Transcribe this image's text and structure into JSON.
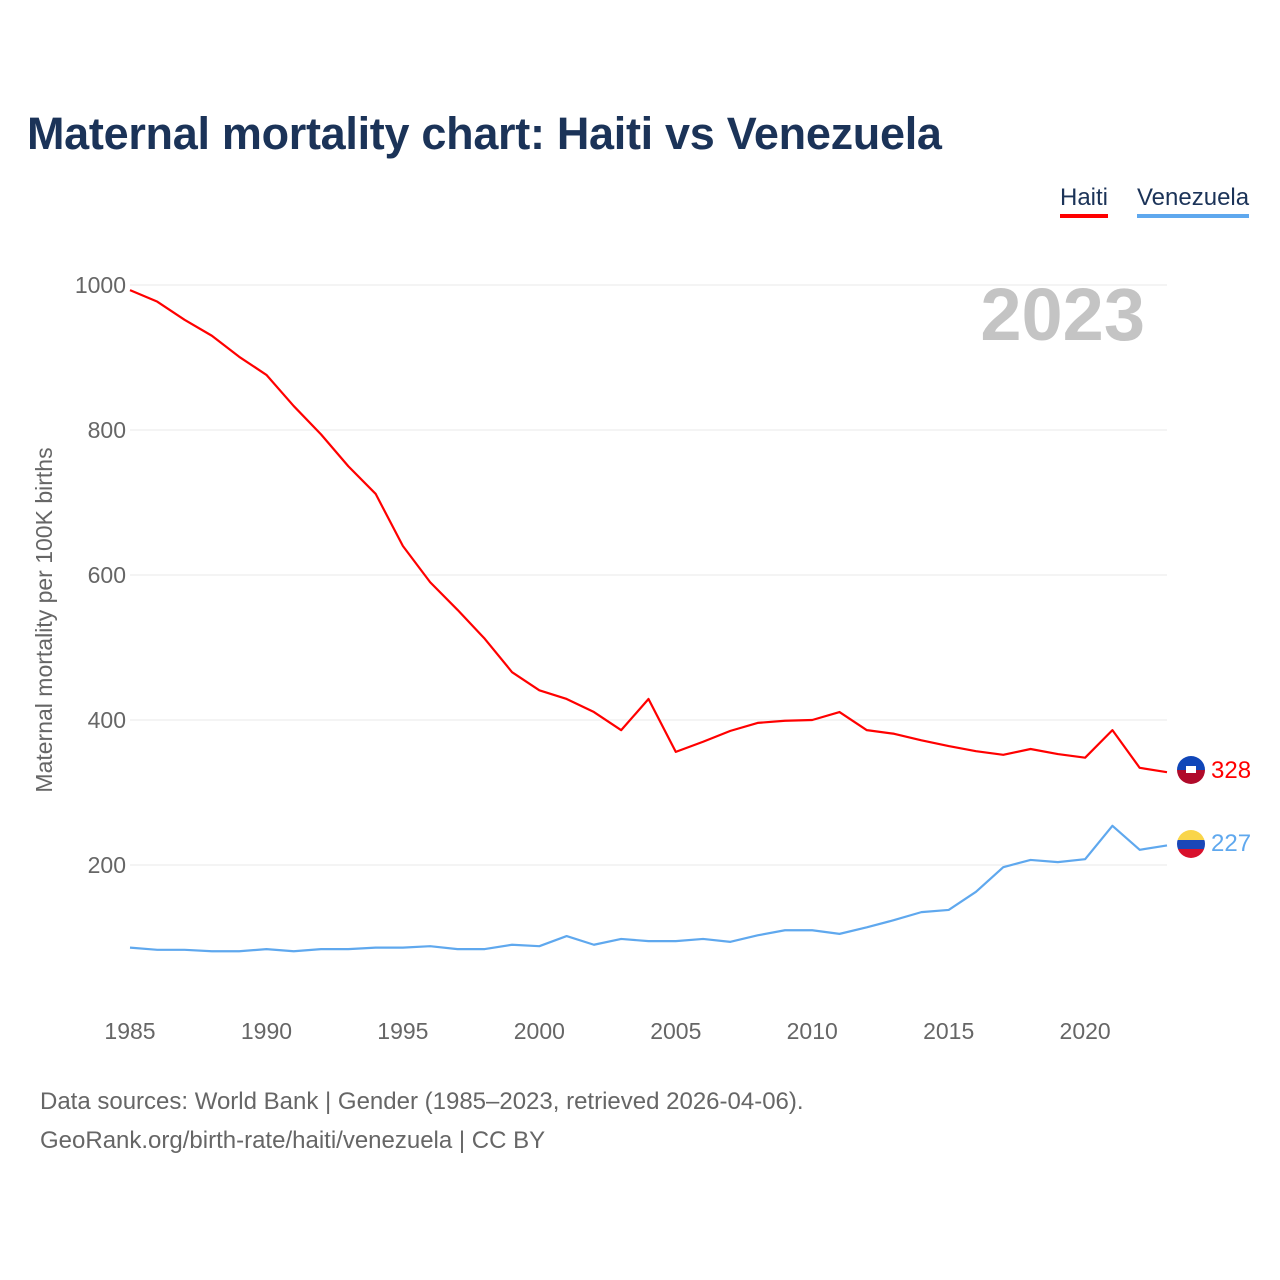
{
  "chart_data": {
    "type": "line",
    "title": "Maternal mortality chart: Haiti vs Venezuela",
    "xlabel": "",
    "ylabel": "Maternal mortality per 100K births",
    "x": [
      1985,
      1986,
      1987,
      1988,
      1989,
      1990,
      1991,
      1992,
      1993,
      1994,
      1995,
      1996,
      1997,
      1998,
      1999,
      2000,
      2001,
      2002,
      2003,
      2004,
      2005,
      2006,
      2007,
      2008,
      2009,
      2010,
      2011,
      2012,
      2013,
      2014,
      2015,
      2016,
      2017,
      2018,
      2019,
      2020,
      2021,
      2022,
      2023
    ],
    "xlim": [
      1985,
      2023
    ],
    "ylim": [
      0,
      1000
    ],
    "x_ticks": [
      "1985",
      "1990",
      "1995",
      "2000",
      "2005",
      "2010",
      "2015",
      "2020"
    ],
    "y_ticks": [
      "200",
      "400",
      "600",
      "800",
      "1000"
    ],
    "grid": true,
    "legend_position": "top-right",
    "year_label": "2023",
    "series": [
      {
        "name": "Haiti",
        "color": "#ff0000",
        "end_label": "328",
        "values": [
          993,
          977,
          952,
          930,
          901,
          876,
          833,
          794,
          750,
          712,
          640,
          590,
          552,
          512,
          466,
          441,
          429,
          411,
          386,
          429,
          356,
          370,
          385,
          396,
          399,
          400,
          411,
          386,
          381,
          372,
          364,
          357,
          352,
          360,
          353,
          348,
          386,
          334,
          328
        ]
      },
      {
        "name": "Venezuela",
        "color": "#5fa8ee",
        "end_label": "227",
        "values": [
          86,
          83,
          83,
          81,
          81,
          84,
          81,
          84,
          84,
          86,
          86,
          88,
          84,
          84,
          90,
          88,
          102,
          90,
          98,
          95,
          95,
          98,
          94,
          103,
          110,
          110,
          105,
          114,
          124,
          135,
          138,
          163,
          197,
          207,
          204,
          208,
          254,
          221,
          227
        ]
      }
    ]
  },
  "footer": {
    "line1": "Data sources: World Bank | Gender (1985–2023, retrieved 2026-04-06).",
    "line2": "GeoRank.org/birth-rate/haiti/venezuela | CC BY"
  }
}
